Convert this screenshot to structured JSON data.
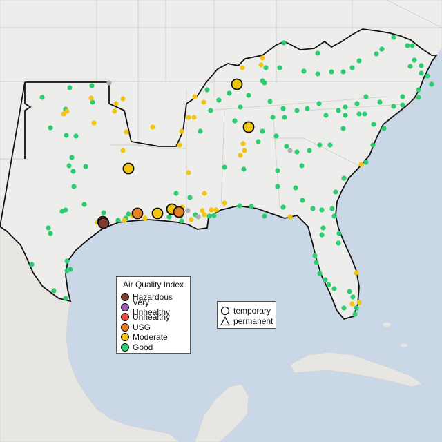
{
  "legend_aqi": {
    "title": "Air Quality Index",
    "items": [
      {
        "label": "Hazardous",
        "color": "#7e3b2e"
      },
      {
        "label": "Very Unhealthy",
        "color": "#9b59b6"
      },
      {
        "label": "Unhealthy",
        "color": "#e74c3c"
      },
      {
        "label": "USG",
        "color": "#e67e22"
      },
      {
        "label": "Moderate",
        "color": "#f1c40f"
      },
      {
        "label": "Good",
        "color": "#2ecc71"
      }
    ]
  },
  "legend_type": {
    "items": [
      {
        "label": "temporary",
        "symbol": "circle"
      },
      {
        "label": "permanent",
        "symbol": "triangle"
      }
    ]
  },
  "colors": {
    "ocean": "#c9d7e6",
    "land": "#ededeb",
    "region_border": "#111111",
    "no_data_gray": "#b0b0b0"
  }
}
